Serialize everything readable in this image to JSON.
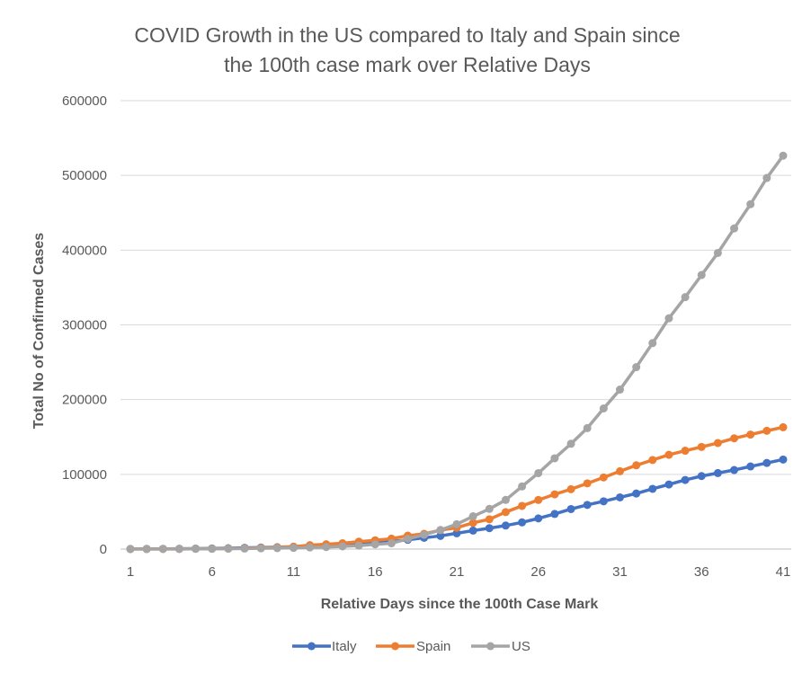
{
  "chart_data": {
    "type": "line",
    "title_lines": [
      "COVID Growth in the US compared to Italy and Spain since",
      "the 100th case mark over Relative Days"
    ],
    "xlabel": "Relative Days since the 100th Case Mark",
    "ylabel": "Total No of Confirmed Cases",
    "x_ticks": [
      "1",
      "6",
      "11",
      "16",
      "21",
      "26",
      "31",
      "36",
      "41"
    ],
    "y_ticks": [
      "0",
      "100000",
      "200000",
      "300000",
      "400000",
      "500000",
      "600000"
    ],
    "xlim": [
      1,
      41
    ],
    "ylim": [
      0,
      600000
    ],
    "grid": "horizontal",
    "legend_position": "bottom",
    "x": [
      1,
      2,
      3,
      4,
      5,
      6,
      7,
      8,
      9,
      10,
      11,
      12,
      13,
      14,
      15,
      16,
      17,
      18,
      19,
      20,
      21,
      22,
      23,
      24,
      25,
      26,
      27,
      28,
      29,
      30,
      31,
      32,
      33,
      34,
      35,
      36,
      37,
      38,
      39,
      40,
      41
    ],
    "series": [
      {
        "name": "Italy",
        "color": "#4472C4",
        "values": [
          155,
          229,
          322,
          453,
          655,
          888,
          1128,
          1694,
          2036,
          2502,
          3089,
          3858,
          4636,
          5883,
          7375,
          9172,
          10149,
          12462,
          15113,
          17660,
          21157,
          24747,
          27980,
          31506,
          35713,
          41035,
          47021,
          53578,
          59138,
          63927,
          69176,
          74386,
          80589,
          86498,
          92472,
          97689,
          101739,
          105792,
          110574,
          115242,
          119827
        ]
      },
      {
        "name": "Spain",
        "color": "#ED7D31",
        "values": [
          120,
          165,
          222,
          259,
          400,
          500,
          673,
          1073,
          1695,
          2277,
          3146,
          5232,
          6391,
          7798,
          9942,
          11748,
          13910,
          17963,
          20410,
          25374,
          28603,
          35136,
          39885,
          49515,
          57786,
          65719,
          73235,
          80110,
          87956,
          95923,
          104118,
          112065,
          119199,
          126168,
          131646,
          136675,
          141942,
          148220,
          153222,
          158273,
          163027
        ]
      },
      {
        "name": "US",
        "color": "#A5A5A5",
        "values": [
          100,
          124,
          158,
          221,
          319,
          435,
          541,
          704,
          994,
          1301,
          1630,
          2183,
          2770,
          3613,
          4596,
          6344,
          7750,
          13680,
          19101,
          25493,
          33276,
          43847,
          53740,
          65778,
          83836,
          101657,
          121465,
          140909,
          161831,
          188172,
          213372,
          243453,
          275586,
          308850,
          337072,
          366667,
          396223,
          429052,
          461437,
          496535,
          526396
        ]
      }
    ]
  }
}
